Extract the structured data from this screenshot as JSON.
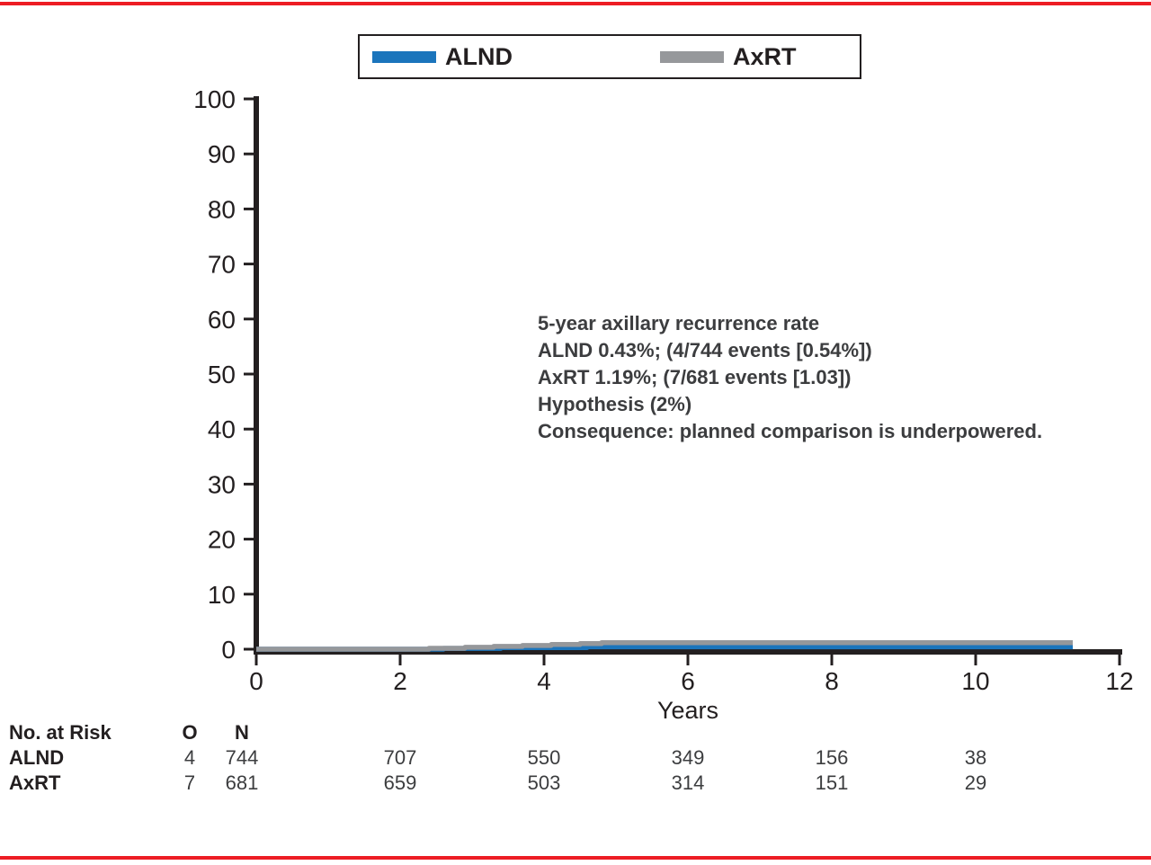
{
  "figure": {
    "rule_color": "#ed1c24",
    "axis_color": "#231f20",
    "text_color": "#3c3d3f",
    "background": "#ffffff"
  },
  "legend": {
    "items": [
      {
        "label": "ALND",
        "color": "#1b75bc"
      },
      {
        "label": "AxRT",
        "color": "#96989b"
      }
    ]
  },
  "annotation": {
    "lines": [
      "5-year axillary recurrence rate",
      "ALND 0.43%; (4/744 events [0.54%])",
      "AxRT 1.19%; (7/681 events [1.03])",
      "Hypothesis (2%)",
      "Consequence: planned comparison is underpowered."
    ]
  },
  "chart_data": {
    "type": "line",
    "title": "",
    "xlabel": "Years",
    "ylabel": "",
    "xlim": [
      0,
      12
    ],
    "ylim": [
      0,
      100
    ],
    "x_ticks": [
      0,
      2,
      4,
      6,
      8,
      10,
      12
    ],
    "y_ticks": [
      0,
      10,
      20,
      30,
      40,
      50,
      60,
      70,
      80,
      90,
      100
    ],
    "grid": false,
    "legend_position": "top-center",
    "series": [
      {
        "name": "ALND",
        "color": "#1b75bc",
        "x": [
          0,
          2.6,
          2.6,
          3.4,
          3.4,
          4.6,
          4.6,
          11.35
        ],
        "y": [
          0,
          0,
          0.15,
          0.15,
          0.29,
          0.29,
          0.43,
          0.43
        ]
      },
      {
        "name": "AxRT",
        "color": "#96989b",
        "x": [
          0,
          2.4,
          2.4,
          2.9,
          2.9,
          3.3,
          3.3,
          3.7,
          3.7,
          4.1,
          4.1,
          4.5,
          4.5,
          4.8,
          4.8,
          11.35
        ],
        "y": [
          0,
          0,
          0.17,
          0.17,
          0.34,
          0.34,
          0.51,
          0.51,
          0.68,
          0.68,
          0.85,
          0.85,
          1.02,
          1.02,
          1.19,
          1.19
        ]
      }
    ]
  },
  "risk_table": {
    "title": "No. at Risk",
    "col_headers": [
      "O",
      "N"
    ],
    "rows": [
      {
        "label": "ALND",
        "o": "4",
        "n": "744",
        "counts": [
          "707",
          "550",
          "349",
          "156",
          "38"
        ]
      },
      {
        "label": "AxRT",
        "o": "7",
        "n": "681",
        "counts": [
          "659",
          "503",
          "314",
          "151",
          "29"
        ]
      }
    ]
  }
}
